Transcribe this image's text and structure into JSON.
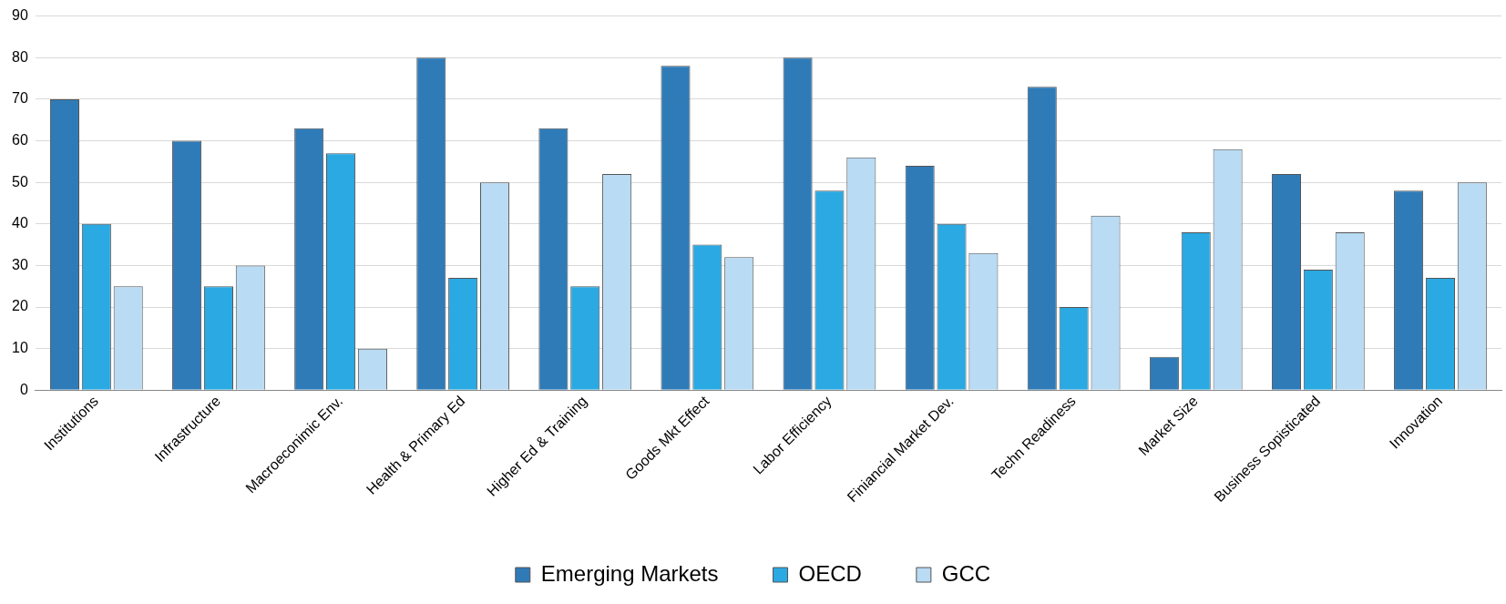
{
  "chart_data": {
    "type": "bar",
    "categories": [
      "Institutions",
      "Infrastructure",
      "Macroeconimic Env.",
      "Health & Primary Ed",
      "Higher Ed & Training",
      "Goods Mkt Effect",
      "Labor Efficiency",
      "Finiancial Market Dev.",
      "Techn Readiness",
      "Market Size",
      "Business Sopisticated",
      "Innovation"
    ],
    "series": [
      {
        "name": "Emerging Markets",
        "color": "#2f7bb8",
        "values": [
          70,
          60,
          63,
          80,
          63,
          78,
          80,
          54,
          73,
          8,
          52,
          48
        ]
      },
      {
        "name": "OECD",
        "color": "#2aa9e3",
        "values": [
          40,
          25,
          57,
          27,
          25,
          35,
          48,
          40,
          20,
          38,
          29,
          27
        ]
      },
      {
        "name": "GCC",
        "color": "#b9dbf4",
        "values": [
          25,
          30,
          10,
          50,
          52,
          32,
          56,
          33,
          42,
          58,
          38,
          50
        ]
      }
    ],
    "ylim": [
      0,
      90
    ],
    "yticks": [
      0,
      10,
      20,
      30,
      40,
      50,
      60,
      70,
      80,
      90
    ],
    "grid": "y",
    "legend": "bottom"
  }
}
